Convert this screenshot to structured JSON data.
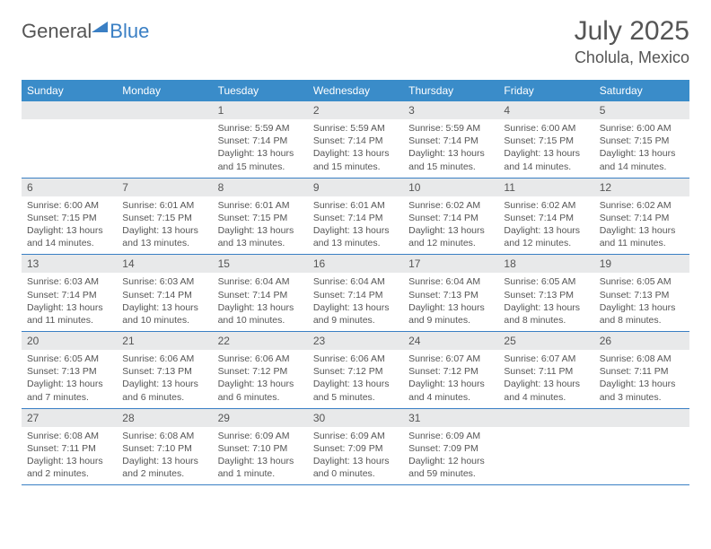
{
  "logo": {
    "general": "General",
    "blue": "Blue"
  },
  "header": {
    "month_year": "July 2025",
    "location": "Cholula, Mexico"
  },
  "colors": {
    "header_bg": "#3a8cc9",
    "accent": "#3a7fc4",
    "daynum_bg": "#e8e9ea",
    "text": "#555555",
    "white": "#ffffff"
  },
  "days_of_week": [
    "Sunday",
    "Monday",
    "Tuesday",
    "Wednesday",
    "Thursday",
    "Friday",
    "Saturday"
  ],
  "weeks": [
    [
      null,
      null,
      {
        "n": "1",
        "sunrise": "Sunrise: 5:59 AM",
        "sunset": "Sunset: 7:14 PM",
        "daylight": "Daylight: 13 hours and 15 minutes."
      },
      {
        "n": "2",
        "sunrise": "Sunrise: 5:59 AM",
        "sunset": "Sunset: 7:14 PM",
        "daylight": "Daylight: 13 hours and 15 minutes."
      },
      {
        "n": "3",
        "sunrise": "Sunrise: 5:59 AM",
        "sunset": "Sunset: 7:14 PM",
        "daylight": "Daylight: 13 hours and 15 minutes."
      },
      {
        "n": "4",
        "sunrise": "Sunrise: 6:00 AM",
        "sunset": "Sunset: 7:15 PM",
        "daylight": "Daylight: 13 hours and 14 minutes."
      },
      {
        "n": "5",
        "sunrise": "Sunrise: 6:00 AM",
        "sunset": "Sunset: 7:15 PM",
        "daylight": "Daylight: 13 hours and 14 minutes."
      }
    ],
    [
      {
        "n": "6",
        "sunrise": "Sunrise: 6:00 AM",
        "sunset": "Sunset: 7:15 PM",
        "daylight": "Daylight: 13 hours and 14 minutes."
      },
      {
        "n": "7",
        "sunrise": "Sunrise: 6:01 AM",
        "sunset": "Sunset: 7:15 PM",
        "daylight": "Daylight: 13 hours and 13 minutes."
      },
      {
        "n": "8",
        "sunrise": "Sunrise: 6:01 AM",
        "sunset": "Sunset: 7:15 PM",
        "daylight": "Daylight: 13 hours and 13 minutes."
      },
      {
        "n": "9",
        "sunrise": "Sunrise: 6:01 AM",
        "sunset": "Sunset: 7:14 PM",
        "daylight": "Daylight: 13 hours and 13 minutes."
      },
      {
        "n": "10",
        "sunrise": "Sunrise: 6:02 AM",
        "sunset": "Sunset: 7:14 PM",
        "daylight": "Daylight: 13 hours and 12 minutes."
      },
      {
        "n": "11",
        "sunrise": "Sunrise: 6:02 AM",
        "sunset": "Sunset: 7:14 PM",
        "daylight": "Daylight: 13 hours and 12 minutes."
      },
      {
        "n": "12",
        "sunrise": "Sunrise: 6:02 AM",
        "sunset": "Sunset: 7:14 PM",
        "daylight": "Daylight: 13 hours and 11 minutes."
      }
    ],
    [
      {
        "n": "13",
        "sunrise": "Sunrise: 6:03 AM",
        "sunset": "Sunset: 7:14 PM",
        "daylight": "Daylight: 13 hours and 11 minutes."
      },
      {
        "n": "14",
        "sunrise": "Sunrise: 6:03 AM",
        "sunset": "Sunset: 7:14 PM",
        "daylight": "Daylight: 13 hours and 10 minutes."
      },
      {
        "n": "15",
        "sunrise": "Sunrise: 6:04 AM",
        "sunset": "Sunset: 7:14 PM",
        "daylight": "Daylight: 13 hours and 10 minutes."
      },
      {
        "n": "16",
        "sunrise": "Sunrise: 6:04 AM",
        "sunset": "Sunset: 7:14 PM",
        "daylight": "Daylight: 13 hours and 9 minutes."
      },
      {
        "n": "17",
        "sunrise": "Sunrise: 6:04 AM",
        "sunset": "Sunset: 7:13 PM",
        "daylight": "Daylight: 13 hours and 9 minutes."
      },
      {
        "n": "18",
        "sunrise": "Sunrise: 6:05 AM",
        "sunset": "Sunset: 7:13 PM",
        "daylight": "Daylight: 13 hours and 8 minutes."
      },
      {
        "n": "19",
        "sunrise": "Sunrise: 6:05 AM",
        "sunset": "Sunset: 7:13 PM",
        "daylight": "Daylight: 13 hours and 8 minutes."
      }
    ],
    [
      {
        "n": "20",
        "sunrise": "Sunrise: 6:05 AM",
        "sunset": "Sunset: 7:13 PM",
        "daylight": "Daylight: 13 hours and 7 minutes."
      },
      {
        "n": "21",
        "sunrise": "Sunrise: 6:06 AM",
        "sunset": "Sunset: 7:13 PM",
        "daylight": "Daylight: 13 hours and 6 minutes."
      },
      {
        "n": "22",
        "sunrise": "Sunrise: 6:06 AM",
        "sunset": "Sunset: 7:12 PM",
        "daylight": "Daylight: 13 hours and 6 minutes."
      },
      {
        "n": "23",
        "sunrise": "Sunrise: 6:06 AM",
        "sunset": "Sunset: 7:12 PM",
        "daylight": "Daylight: 13 hours and 5 minutes."
      },
      {
        "n": "24",
        "sunrise": "Sunrise: 6:07 AM",
        "sunset": "Sunset: 7:12 PM",
        "daylight": "Daylight: 13 hours and 4 minutes."
      },
      {
        "n": "25",
        "sunrise": "Sunrise: 6:07 AM",
        "sunset": "Sunset: 7:11 PM",
        "daylight": "Daylight: 13 hours and 4 minutes."
      },
      {
        "n": "26",
        "sunrise": "Sunrise: 6:08 AM",
        "sunset": "Sunset: 7:11 PM",
        "daylight": "Daylight: 13 hours and 3 minutes."
      }
    ],
    [
      {
        "n": "27",
        "sunrise": "Sunrise: 6:08 AM",
        "sunset": "Sunset: 7:11 PM",
        "daylight": "Daylight: 13 hours and 2 minutes."
      },
      {
        "n": "28",
        "sunrise": "Sunrise: 6:08 AM",
        "sunset": "Sunset: 7:10 PM",
        "daylight": "Daylight: 13 hours and 2 minutes."
      },
      {
        "n": "29",
        "sunrise": "Sunrise: 6:09 AM",
        "sunset": "Sunset: 7:10 PM",
        "daylight": "Daylight: 13 hours and 1 minute."
      },
      {
        "n": "30",
        "sunrise": "Sunrise: 6:09 AM",
        "sunset": "Sunset: 7:09 PM",
        "daylight": "Daylight: 13 hours and 0 minutes."
      },
      {
        "n": "31",
        "sunrise": "Sunrise: 6:09 AM",
        "sunset": "Sunset: 7:09 PM",
        "daylight": "Daylight: 12 hours and 59 minutes."
      },
      null,
      null
    ]
  ]
}
